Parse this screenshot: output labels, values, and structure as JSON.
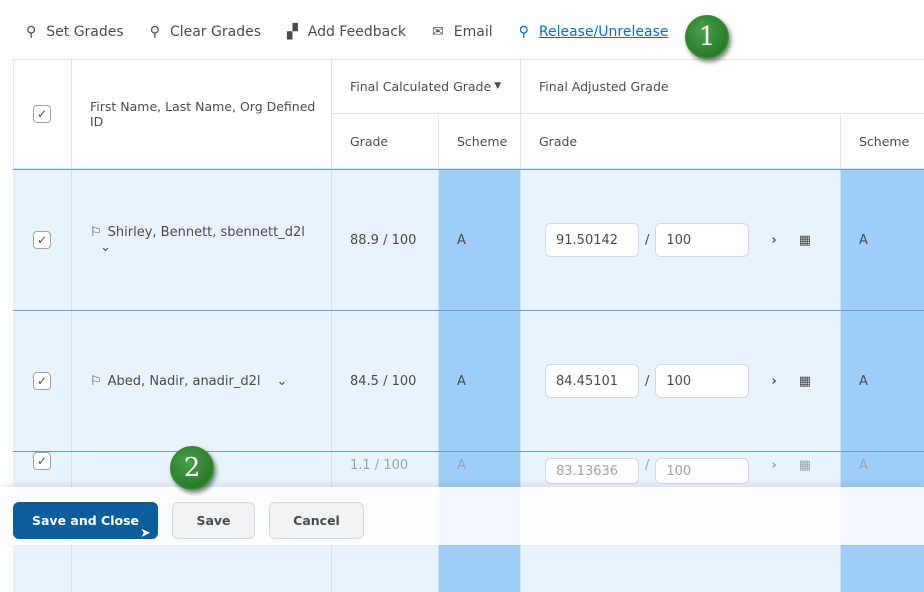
{
  "toolbar": {
    "items": [
      {
        "label": "Set Grades",
        "icon": "pin-icon"
      },
      {
        "label": "Clear Grades",
        "icon": "clear-pin-icon"
      },
      {
        "label": "Add Feedback",
        "icon": "feedback-icon"
      },
      {
        "label": "Email",
        "icon": "envelope-icon"
      },
      {
        "label": "Release/Unrelease",
        "icon": "release-icon"
      }
    ]
  },
  "callouts": {
    "one": "1",
    "two": "2"
  },
  "table": {
    "header": {
      "name": "First Name, Last Name, Org Defined ID",
      "final_calculated": "Final Calculated Grade",
      "final_adjusted": "Final Adjusted Grade",
      "grade": "Grade",
      "scheme": "Scheme"
    },
    "rows": [
      {
        "name": "Shirley, Bennett, sbennett_d2l",
        "calc_grade": "88.9 / 100",
        "calc_scheme": "A",
        "adj_value": "91.50142",
        "slash": "/",
        "adj_out_of": "100",
        "adj_scheme": "A",
        "checked": true
      },
      {
        "name": "Abed, Nadir, anadir_d2l",
        "calc_grade": "84.5 / 100",
        "calc_scheme": "A",
        "adj_value": "84.45101",
        "slash": "/",
        "adj_out_of": "100",
        "adj_scheme": "A",
        "checked": true
      },
      {
        "name": "",
        "calc_grade": "1.1 / 100",
        "calc_scheme": "A",
        "adj_value": "83.13636",
        "slash": "/",
        "adj_out_of": "100",
        "adj_scheme": "A",
        "checked": true
      }
    ]
  },
  "footer": {
    "save_close": "Save and Close",
    "save": "Save",
    "cancel": "Cancel"
  }
}
